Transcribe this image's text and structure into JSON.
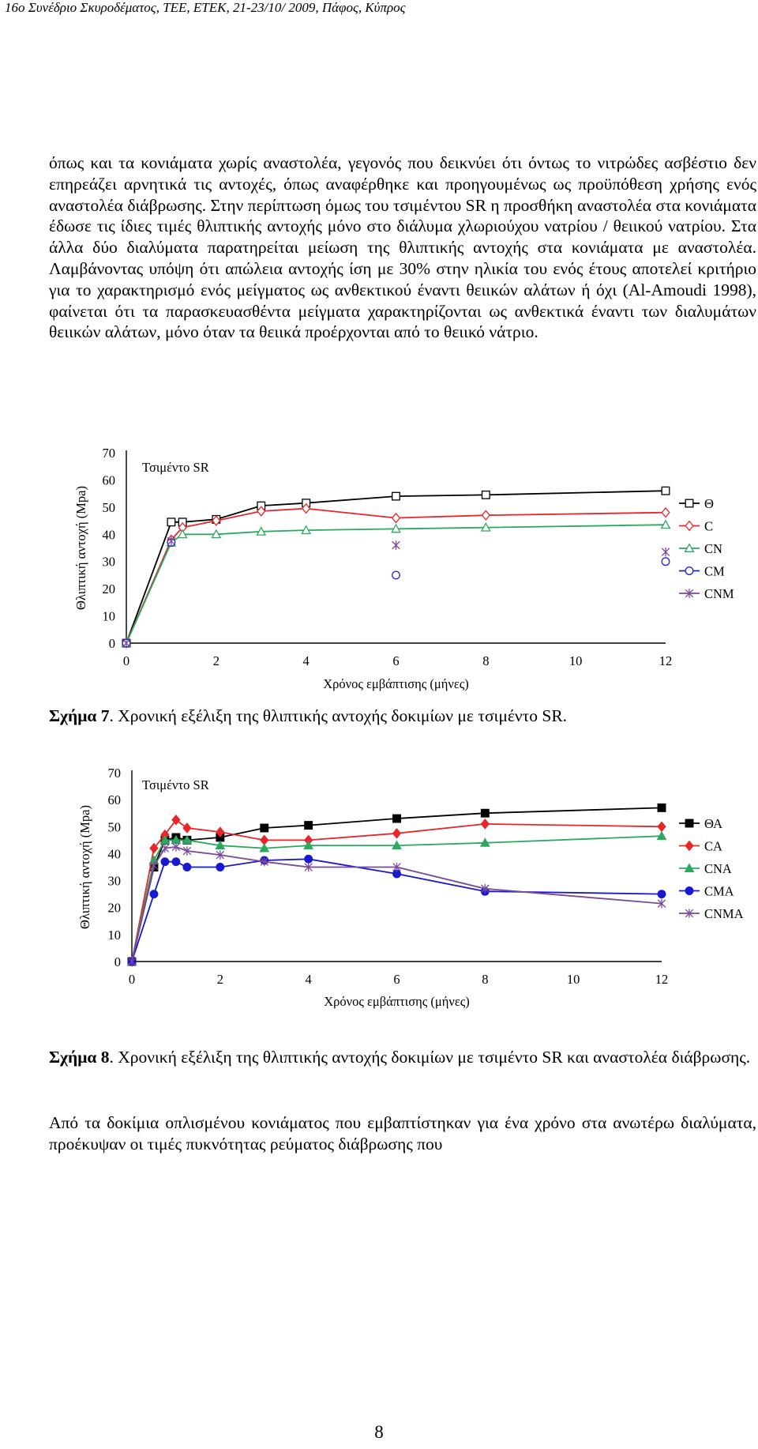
{
  "header": "16ο Συνέδριο Σκυροδέματος, ΤΕΕ, ΕΤΕΚ, 21-23/10/ 2009, Πάφος, Κύπρος",
  "paragraph1": "όπως και τα κονιάματα χωρίς αναστολέα, γεγονός που δεικνύει ότι όντως το νιτρώδες ασβέστιο δεν επηρεάζει αρνητικά τις αντοχές, όπως αναφέρθηκε και προηγουμένως ως προϋπόθεση χρήσης ενός αναστολέα διάβρωσης. Στην περίπτωση όμως του τσιμέντου SR η προσθήκη αναστολέα στα κονιάματα έδωσε τις ίδιες τιμές θλιπτικής αντοχής μόνο στο διάλυμα χλωριούχου νατρίου / θειικού νατρίου. Στα άλλα δύο διαλύματα παρατηρείται μείωση της θλιπτικής αντοχής στα κονιάματα με αναστολέα. Λαμβάνοντας υπόψη ότι απώλεια αντοχής ίση με 30% στην ηλικία του ενός έτους αποτελεί κριτήριο για το χαρακτηρισμό ενός μείγματος ως ανθεκτικού έναντι θειικών αλάτων ή όχι (Al-Amoudi 1998), φαίνεται ότι τα παρασκευασθέντα μείγματα χαρακτηρίζονται ως ανθεκτικά έναντι των διαλυμάτων θειικών αλάτων, μόνο όταν τα θειικά προέρχονται από το θειικό νάτριο.",
  "figure7": {
    "label": "Σχήμα 7",
    "caption": ". Χρονική εξέλιξη της θλιπτικής αντοχής δοκιμίων με τσιμέντο SR."
  },
  "figure8": {
    "label": "Σχήμα 8",
    "caption": ". Χρονική εξέλιξη της θλιπτικής αντοχής δοκιμίων με τσιμέντο SR και αναστολέα διάβρωσης."
  },
  "paragraph2": "Από τα δοκίμια οπλισμένου κονιάματος που εμβαπτίστηκαν για ένα χρόνο στα ανωτέρω διαλύματα, προέκυψαν οι τιμές πυκνότητας ρεύματος διάβρωσης που",
  "page_number": "8",
  "chart_data": [
    {
      "type": "line",
      "title": "Τσιμέντο SR",
      "xlabel": "Χρόνος εμβάπτισης (μήνες)",
      "ylabel": "Θλιπτική αντοχή (Mpa)",
      "xlim": [
        0,
        12
      ],
      "ylim": [
        0,
        70
      ],
      "xticks": [
        0,
        2,
        4,
        6,
        8,
        10,
        12
      ],
      "yticks": [
        0,
        10,
        20,
        30,
        40,
        50,
        60,
        70
      ],
      "legend_position": "right",
      "series": [
        {
          "name": "Θ",
          "color": "#000000",
          "marker": "square-open",
          "lines": true,
          "x": [
            0,
            1,
            1.25,
            2,
            3,
            4,
            6,
            8,
            12
          ],
          "y": [
            0,
            44.5,
            44.5,
            45.5,
            50.5,
            51.5,
            54,
            54.5,
            56
          ]
        },
        {
          "name": "C",
          "color": "#e8262a",
          "marker": "diamond-open",
          "lines": true,
          "x": [
            0,
            1,
            1.25,
            2,
            3,
            4,
            6,
            8,
            12
          ],
          "y": [
            0,
            38,
            42.5,
            45,
            48.5,
            49.5,
            46,
            47,
            48
          ]
        },
        {
          "name": "CN",
          "color": "#2ca860",
          "marker": "triangle-open",
          "lines": true,
          "x": [
            0,
            1,
            1.25,
            2,
            3,
            4,
            6,
            8,
            12
          ],
          "y": [
            0,
            37,
            40,
            40,
            41,
            41.5,
            42,
            42.5,
            43.5
          ]
        },
        {
          "name": "CM",
          "color": "#2323c8",
          "marker": "circle-open",
          "lines": false,
          "x": [
            0,
            1,
            6,
            12
          ],
          "y": [
            0,
            37,
            25,
            30
          ]
        },
        {
          "name": "CNM",
          "color": "#7a4a98",
          "marker": "asterisk",
          "lines": false,
          "x": [
            0,
            1,
            6,
            12
          ],
          "y": [
            0,
            37.5,
            36,
            33.5
          ]
        }
      ]
    },
    {
      "type": "line",
      "title": "Τσιμέντο SR",
      "xlabel": "Χρόνος εμβάπτισης (μήνες)",
      "ylabel": "Θλιπτική αντοχή (Mpa)",
      "xlim": [
        0,
        12
      ],
      "ylim": [
        0,
        70
      ],
      "xticks": [
        0,
        2,
        4,
        6,
        8,
        10,
        12
      ],
      "yticks": [
        0,
        10,
        20,
        30,
        40,
        50,
        60,
        70
      ],
      "legend_position": "right",
      "series": [
        {
          "name": "ΘΑ",
          "color": "#000000",
          "marker": "square-filled",
          "lines": true,
          "x": [
            0,
            0.5,
            0.75,
            1,
            1.25,
            2,
            3,
            4,
            6,
            8,
            12
          ],
          "y": [
            0,
            35,
            45,
            46,
            45,
            46,
            49.5,
            50.5,
            53,
            55,
            57
          ]
        },
        {
          "name": "CA",
          "color": "#e8262a",
          "marker": "diamond-filled",
          "lines": true,
          "x": [
            0,
            0.5,
            0.75,
            1,
            1.25,
            2,
            3,
            4,
            6,
            8,
            12
          ],
          "y": [
            0,
            42,
            47,
            52.5,
            49.5,
            48,
            45,
            45,
            47.5,
            51,
            50
          ]
        },
        {
          "name": "CNA",
          "color": "#2ca860",
          "marker": "triangle-filled",
          "lines": true,
          "x": [
            0,
            0.5,
            0.75,
            1,
            1.25,
            2,
            3,
            4,
            6,
            8,
            12
          ],
          "y": [
            0,
            37.5,
            45,
            45,
            45,
            43,
            42,
            43,
            43,
            44,
            46.5
          ]
        },
        {
          "name": "CMA",
          "color": "#1818d0",
          "marker": "circle-filled",
          "lines": true,
          "x": [
            0,
            0.5,
            0.75,
            1,
            1.25,
            2,
            3,
            4,
            6,
            8,
            12
          ],
          "y": [
            0,
            25,
            37,
            37,
            35,
            35,
            37.5,
            38,
            32.5,
            26,
            25
          ]
        },
        {
          "name": "CNMA",
          "color": "#7a4a98",
          "marker": "asterisk",
          "lines": true,
          "x": [
            0,
            0.5,
            0.75,
            1,
            1.25,
            2,
            3,
            4,
            6,
            8,
            12
          ],
          "y": [
            0,
            35.5,
            42,
            42.5,
            41,
            39.5,
            37,
            35,
            35,
            27,
            21.5
          ]
        }
      ]
    }
  ]
}
